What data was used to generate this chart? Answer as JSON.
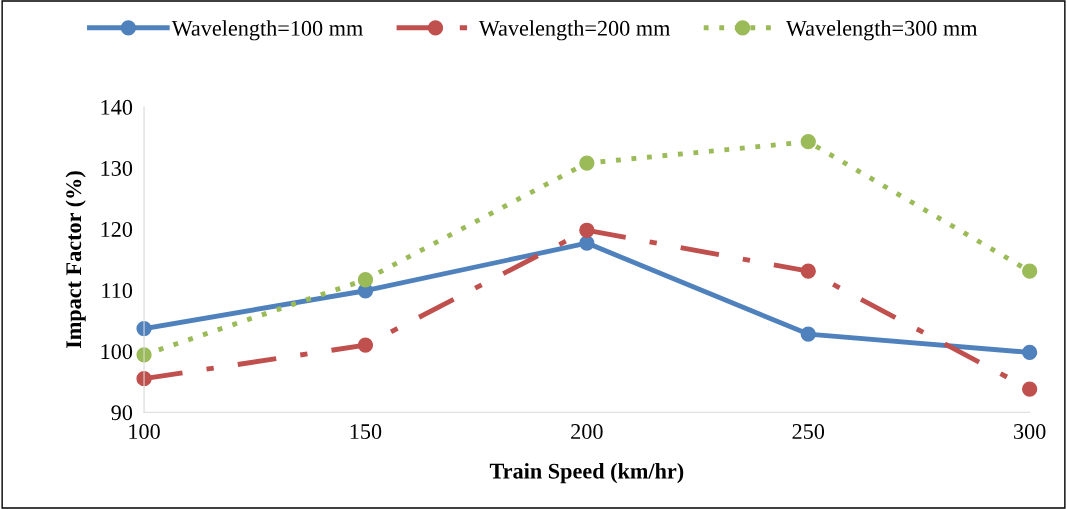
{
  "chart_data": {
    "type": "line",
    "xlabel": "Train Speed (km/hr)",
    "ylabel": "Impact Factor (%)",
    "x": [
      100,
      150,
      200,
      250,
      300
    ],
    "xlim": [
      100,
      300
    ],
    "xticks": [
      100,
      150,
      200,
      250,
      300
    ],
    "ylim": [
      90,
      140
    ],
    "yticks": [
      90,
      100,
      110,
      120,
      130,
      140
    ],
    "grid": false,
    "legend": "top",
    "marker": "circle",
    "series": [
      {
        "name": "Wavelength=100 mm",
        "color": "#4f81bd",
        "line_style": "solid",
        "values": [
          103.7,
          109.9,
          117.7,
          102.8,
          99.8
        ]
      },
      {
        "name": "Wavelength=200 mm",
        "color": "#c0504d",
        "line_style": "dashdot",
        "values": [
          95.5,
          101.0,
          119.8,
          113.1,
          93.8
        ]
      },
      {
        "name": "Wavelength=300 mm",
        "color": "#9bbb59",
        "line_style": "dotted",
        "values": [
          99.4,
          111.7,
          130.8,
          134.3,
          113.1
        ]
      }
    ]
  }
}
